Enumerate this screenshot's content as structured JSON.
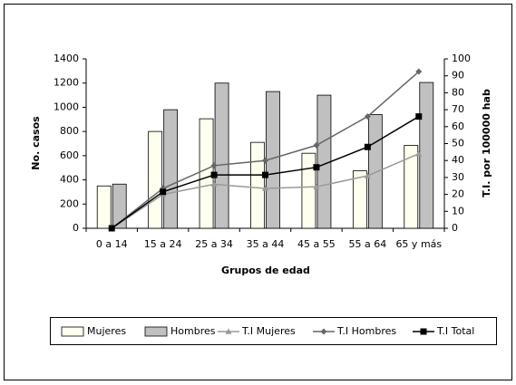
{
  "chart_data": {
    "type": "combo",
    "categories": [
      "0 a 14",
      "15 a 24",
      "25 a 34",
      "35 a 44",
      "45 a 55",
      "55 a 64",
      "65 y más"
    ],
    "x_label": "Grupos de edad",
    "y_label": "No. casos",
    "y2_label": "T.I. por 100000 hab",
    "ylim": [
      0,
      1400
    ],
    "yticks": [
      0,
      200,
      400,
      600,
      800,
      1000,
      1200,
      1400
    ],
    "y2lim": [
      0,
      100
    ],
    "y2ticks": [
      0,
      10,
      20,
      30,
      40,
      50,
      60,
      70,
      80,
      90,
      100
    ],
    "legend": "bottom",
    "series": [
      {
        "name": "Mujeres",
        "type": "bar",
        "color": "#fffff0",
        "values": [
          350,
          800,
          905,
          710,
          620,
          475,
          685
        ]
      },
      {
        "name": "Hombres",
        "type": "bar",
        "color": "#c0c0c0",
        "values": [
          365,
          980,
          1200,
          1130,
          1100,
          940,
          1205
        ]
      },
      {
        "name": "T.I Mujeres",
        "type": "line",
        "axis": "y2",
        "marker": "triangle",
        "color": "#999999",
        "values": [
          0,
          20,
          26,
          23.5,
          24.5,
          31,
          44
        ]
      },
      {
        "name": "T.I Hombres",
        "type": "line",
        "axis": "y2",
        "marker": "diamond",
        "color": "#666666",
        "values": [
          0,
          23.5,
          37,
          40,
          49,
          66,
          92.5
        ]
      },
      {
        "name": "T.I Total",
        "type": "line",
        "axis": "y2",
        "marker": "square",
        "color": "#000000",
        "values": [
          0,
          21.5,
          31.5,
          31.5,
          36,
          48,
          66
        ]
      }
    ]
  }
}
